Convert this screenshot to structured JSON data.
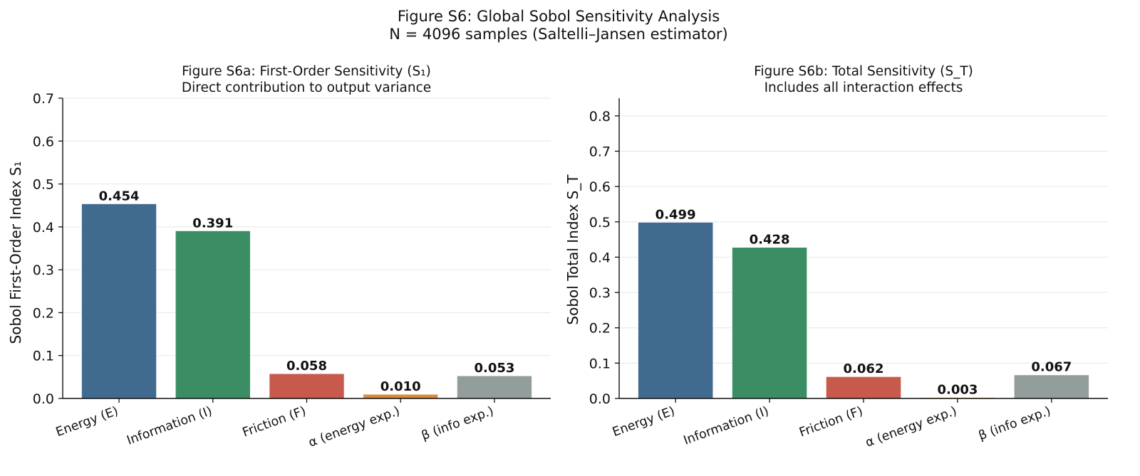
{
  "figure": {
    "title": "Figure S6: Global Sobol Sensitivity Analysis",
    "subtitle": "N = 4096 samples (Saltelli–Jansen estimator)"
  },
  "colors": {
    "energy": "#416a8f",
    "information": "#3b8e63",
    "friction": "#c85a4d",
    "alpha": "#dd8b3a",
    "beta": "#939e9c",
    "grid": "#e6e6e6",
    "axis": "#111111"
  },
  "chart_data": [
    {
      "type": "bar",
      "title": "Figure S6a: First-Order Sensitivity (S₁)",
      "subtitle": "Direct contribution to output variance",
      "xlabel": "",
      "ylabel": "Sobol First-Order Index S₁",
      "categories": [
        "Energy (E)",
        "Information (I)",
        "Friction (F)",
        "α (energy exp.)",
        "β (info exp.)"
      ],
      "values": [
        0.454,
        0.391,
        0.058,
        0.01,
        0.053
      ],
      "value_labels": [
        "0.454",
        "0.391",
        "0.058",
        "0.010",
        "0.053"
      ],
      "ylim": [
        0,
        0.7
      ],
      "yticks": [
        0.0,
        0.1,
        0.2,
        0.3,
        0.4,
        0.5,
        0.6,
        0.7
      ],
      "ytick_labels": [
        "0.0",
        "0.1",
        "0.2",
        "0.3",
        "0.4",
        "0.5",
        "0.6",
        "0.7"
      ],
      "grid": "y"
    },
    {
      "type": "bar",
      "title": "Figure S6b: Total Sensitivity (S_T)",
      "subtitle": "Includes all interaction effects",
      "xlabel": "",
      "ylabel": "Sobol Total Index S_T",
      "categories": [
        "Energy (E)",
        "Information (I)",
        "Friction (F)",
        "α (energy exp.)",
        "β (info exp.)"
      ],
      "values": [
        0.499,
        0.428,
        0.062,
        0.003,
        0.067
      ],
      "value_labels": [
        "0.499",
        "0.428",
        "0.062",
        "0.003",
        "0.067"
      ],
      "ylim": [
        0,
        0.85
      ],
      "yticks": [
        0.0,
        0.1,
        0.2,
        0.3,
        0.4,
        0.5,
        0.6,
        0.7,
        0.8
      ],
      "ytick_labels": [
        "0.0",
        "0.1",
        "0.2",
        "0.3",
        "0.4",
        "0.5",
        "0.6",
        "0.7",
        "0.8"
      ],
      "grid": "y"
    }
  ]
}
